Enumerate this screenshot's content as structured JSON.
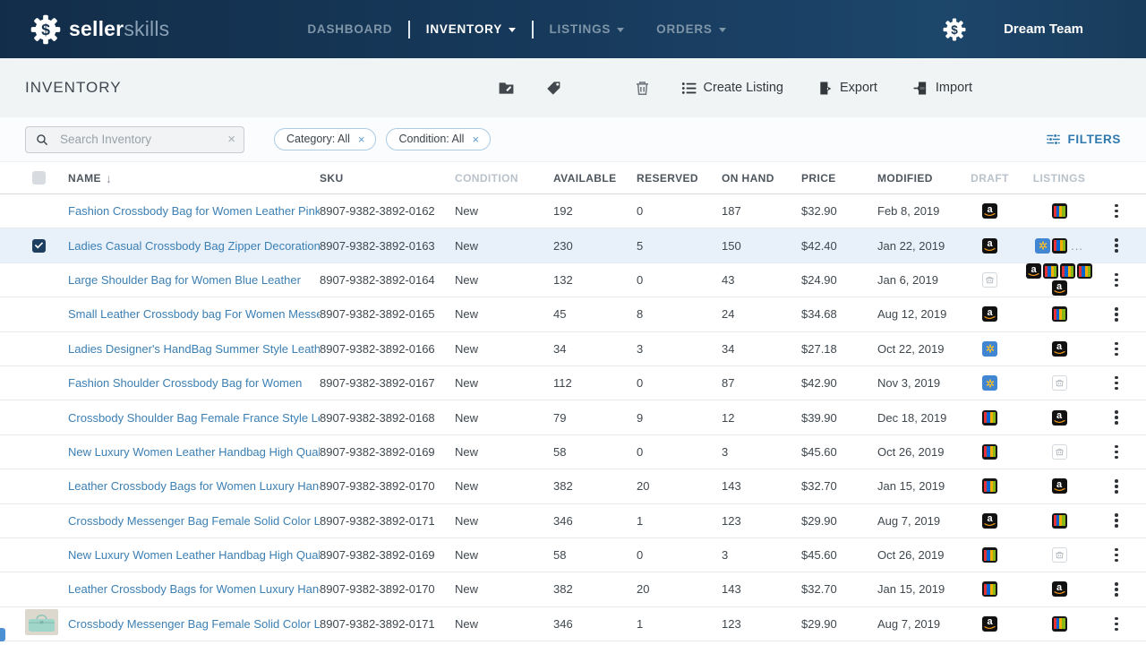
{
  "navbar": {
    "brand_bold": "seller",
    "brand_light": "skills",
    "nav_items": [
      {
        "label": "DASHBOARD",
        "active": false,
        "caret": false
      },
      {
        "label": "INVENTORY",
        "active": true,
        "caret": true
      },
      {
        "label": "LISTINGS",
        "active": false,
        "caret": true
      },
      {
        "label": "ORDERS",
        "active": false,
        "caret": true
      }
    ],
    "team_name": "Dream Team"
  },
  "page_header": {
    "title": "INVENTORY",
    "icon_actions": [
      "move-to-folder",
      "tag",
      "trash"
    ],
    "create_listing_label": "Create Listing",
    "export_label": "Export",
    "import_label": "Import"
  },
  "filter_bar": {
    "search_placeholder": "Search Inventory",
    "chips": [
      {
        "label": "Category: All"
      },
      {
        "label": "Condition: All"
      }
    ],
    "filters_button": "FILTERS"
  },
  "table": {
    "columns": [
      "NAME",
      "SKU",
      "CONDITION",
      "AVAILABLE",
      "RESERVED",
      "ON HAND",
      "PRICE",
      "MODIFIED",
      "DRAFT",
      "LISTINGS"
    ],
    "sorted_column": "NAME",
    "rows": [
      {
        "name": "Fashion Crossbody Bag for Women Leather Pink",
        "sku": "8907-9382-3892-0162",
        "condition": "New",
        "available": "192",
        "reserved": "0",
        "on_hand": "187",
        "price": "$32.90",
        "modified": "Feb 8, 2019",
        "draft": [
          "amazon"
        ],
        "listings": [
          "ebay"
        ],
        "listings_more": false,
        "selected": false,
        "thumbnail": false
      },
      {
        "name": "Ladies Casual Crossbody Bag Zipper Decoration",
        "sku": "8907-9382-3892-0163",
        "condition": "New",
        "available": "230",
        "reserved": "5",
        "on_hand": "150",
        "price": "$42.40",
        "modified": "Jan 22, 2019",
        "draft": [
          "amazon"
        ],
        "listings": [
          "walmart",
          "ebay"
        ],
        "listings_more": true,
        "selected": true,
        "thumbnail": false
      },
      {
        "name": "Large Shoulder Bag for Women Blue Leather",
        "sku": "8907-9382-3892-0164",
        "condition": "New",
        "available": "132",
        "reserved": "0",
        "on_hand": "43",
        "price": "$24.90",
        "modified": "Jan 6, 2019",
        "draft": [
          "none"
        ],
        "listings": [
          "amazon",
          "ebay",
          "ebay",
          "ebay",
          "amazon"
        ],
        "listings_more": false,
        "selected": false,
        "thumbnail": false
      },
      {
        "name": "Small Leather Crossbody bag For Women Messenger",
        "sku": "8907-9382-3892-0165",
        "condition": "New",
        "available": "45",
        "reserved": "8",
        "on_hand": "24",
        "price": "$34.68",
        "modified": "Aug 12, 2019",
        "draft": [
          "amazon"
        ],
        "listings": [
          "ebay"
        ],
        "listings_more": false,
        "selected": false,
        "thumbnail": false
      },
      {
        "name": "Ladies Designer's HandBag Summer Style Leather",
        "sku": "8907-9382-3892-0166",
        "condition": "New",
        "available": "34",
        "reserved": "3",
        "on_hand": "34",
        "price": "$27.18",
        "modified": "Oct 22, 2019",
        "draft": [
          "walmart"
        ],
        "listings": [
          "amazon"
        ],
        "listings_more": false,
        "selected": false,
        "thumbnail": false
      },
      {
        "name": "Fashion Shoulder Crossbody Bag for Women",
        "sku": "8907-9382-3892-0167",
        "condition": "New",
        "available": "112",
        "reserved": "0",
        "on_hand": "87",
        "price": "$42.90",
        "modified": "Nov 3, 2019",
        "draft": [
          "walmart"
        ],
        "listings": [
          "none"
        ],
        "listings_more": false,
        "selected": false,
        "thumbnail": false
      },
      {
        "name": "Crossbody Shoulder Bag Female France Style Leather",
        "sku": "8907-9382-3892-0168",
        "condition": "New",
        "available": "79",
        "reserved": "9",
        "on_hand": "12",
        "price": "$39.90",
        "modified": "Dec 18, 2019",
        "draft": [
          "ebay"
        ],
        "listings": [
          "amazon"
        ],
        "listings_more": false,
        "selected": false,
        "thumbnail": false
      },
      {
        "name": "New Luxury Women Leather Handbag High Quality",
        "sku": "8907-9382-3892-0169",
        "condition": "New",
        "available": "58",
        "reserved": "0",
        "on_hand": "3",
        "price": "$45.60",
        "modified": "Oct 26, 2019",
        "draft": [
          "ebay"
        ],
        "listings": [
          "none"
        ],
        "listings_more": false,
        "selected": false,
        "thumbnail": false
      },
      {
        "name": "Leather Crossbody Bags for Women Luxury Handbags",
        "sku": "8907-9382-3892-0170",
        "condition": "New",
        "available": "382",
        "reserved": "20",
        "on_hand": "143",
        "price": "$32.70",
        "modified": "Jan 15, 2019",
        "draft": [
          "ebay"
        ],
        "listings": [
          "amazon"
        ],
        "listings_more": false,
        "selected": false,
        "thumbnail": false
      },
      {
        "name": "Crossbody Messenger Bag Female Solid Color Leather",
        "sku": "8907-9382-3892-0171",
        "condition": "New",
        "available": "346",
        "reserved": "1",
        "on_hand": "123",
        "price": "$29.90",
        "modified": "Aug 7, 2019",
        "draft": [
          "amazon"
        ],
        "listings": [
          "ebay"
        ],
        "listings_more": false,
        "selected": false,
        "thumbnail": false
      },
      {
        "name": "New Luxury Women Leather Handbag High Quality",
        "sku": "8907-9382-3892-0169",
        "condition": "New",
        "available": "58",
        "reserved": "0",
        "on_hand": "3",
        "price": "$45.60",
        "modified": "Oct 26, 2019",
        "draft": [
          "ebay"
        ],
        "listings": [
          "none"
        ],
        "listings_more": false,
        "selected": false,
        "thumbnail": false
      },
      {
        "name": "Leather Crossbody Bags for Women Luxury Handbags",
        "sku": "8907-9382-3892-0170",
        "condition": "New",
        "available": "382",
        "reserved": "20",
        "on_hand": "143",
        "price": "$32.70",
        "modified": "Jan 15, 2019",
        "draft": [
          "ebay"
        ],
        "listings": [
          "amazon"
        ],
        "listings_more": false,
        "selected": false,
        "thumbnail": false
      },
      {
        "name": "Crossbody Messenger Bag Female Solid Color Leather",
        "sku": "8907-9382-3892-0171",
        "condition": "New",
        "available": "346",
        "reserved": "1",
        "on_hand": "123",
        "price": "$29.90",
        "modified": "Aug 7, 2019",
        "draft": [
          "amazon"
        ],
        "listings": [
          "ebay"
        ],
        "listings_more": false,
        "selected": false,
        "thumbnail": true
      }
    ]
  },
  "marketplace_names": {
    "amazon": "Amazon",
    "ebay": "eBay",
    "walmart": "Walmart",
    "none": "Not listed"
  },
  "colors": {
    "navbar_bg": "#16334f",
    "accent_blue": "#2e78ad",
    "link_blue": "#3b7fb3",
    "selected_row_bg": "#e8f1fa",
    "chip_border": "#a9cce7",
    "amazon_bg": "#111111",
    "walmart_bg": "#4186d3",
    "walmart_spark": "#ffc220",
    "ebay_stripes": [
      "#e53238",
      "#0064d2",
      "#f5af02",
      "#86b817"
    ]
  }
}
